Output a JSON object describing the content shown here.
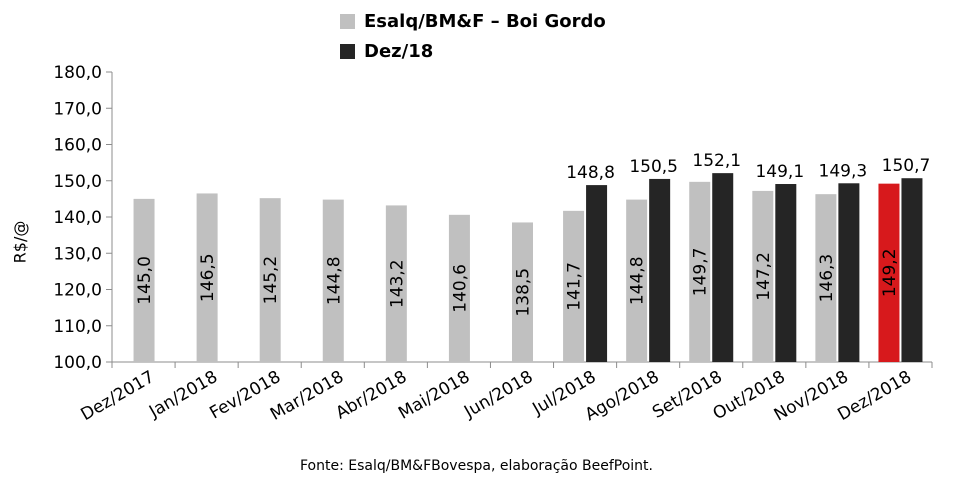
{
  "chart_data": {
    "type": "bar",
    "title": "",
    "ylabel": "R$/@",
    "xlabel": "",
    "ylim": [
      100,
      180
    ],
    "yticks": [
      "100,0",
      "110,0",
      "120,0",
      "130,0",
      "140,0",
      "150,0",
      "160,0",
      "170,0",
      "180,0"
    ],
    "grid": false,
    "legend": "top",
    "categories": [
      "Dez/2017",
      "Jan/2018",
      "Fev/2018",
      "Mar/2018",
      "Abr/2018",
      "Mai/2018",
      "Jun/2018",
      "Jul/2018",
      "Ago/2018",
      "Set/2018",
      "Out/2018",
      "Nov/2018",
      "Dez/2018"
    ],
    "series": [
      {
        "name": "Esalq/BM&F – Boi Gordo",
        "color": "#c0c0c0",
        "values": [
          145.0,
          146.5,
          145.2,
          144.8,
          143.2,
          140.6,
          138.5,
          141.7,
          144.8,
          149.7,
          147.2,
          146.3,
          149.2
        ],
        "labels": [
          "145,0",
          "146,5",
          "145,2",
          "144,8",
          "143,2",
          "140,6",
          "138,5",
          "141,7",
          "144,8",
          "149,7",
          "147,2",
          "146,3",
          "149,2"
        ],
        "highlight_index": 12,
        "highlight_color": "#d7191c"
      },
      {
        "name": "Dez/18",
        "color": "#252525",
        "values": [
          null,
          null,
          null,
          null,
          null,
          null,
          null,
          148.8,
          150.5,
          152.1,
          149.1,
          149.3,
          150.7
        ],
        "labels": [
          null,
          null,
          null,
          null,
          null,
          null,
          null,
          "148,8",
          "150,5",
          "152,1",
          "149,1",
          "149,3",
          "150,7"
        ]
      }
    ]
  },
  "source_note": "Fonte: Esalq/BM&FBovespa, elaboração BeefPoint."
}
